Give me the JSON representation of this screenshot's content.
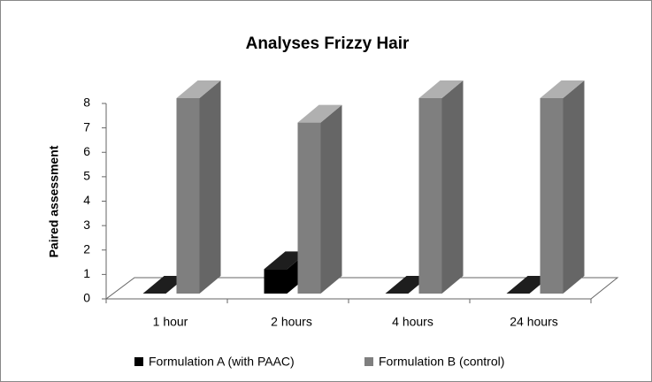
{
  "chart_data": {
    "type": "bar3d",
    "title": "Analyses Frizzy Hair",
    "y_axis_label": "Paired assessment",
    "categories": [
      "1 hour",
      "2 hours",
      "4 hours",
      "24 hours"
    ],
    "series": [
      {
        "name": "Formulation A (with PAAC)",
        "color": "#000000",
        "values": [
          0,
          1,
          0,
          0
        ]
      },
      {
        "name": "Formulation B (control)",
        "color": "#7f7f7f",
        "values": [
          8,
          7,
          8,
          8
        ]
      }
    ],
    "ylim": [
      0,
      8
    ],
    "yticks": [
      0,
      1,
      2,
      3,
      4,
      5,
      6,
      7,
      8
    ],
    "legend": "bottom"
  }
}
